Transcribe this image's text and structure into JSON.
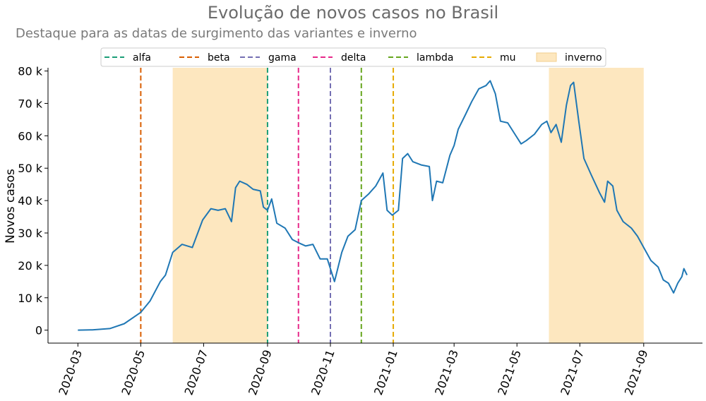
{
  "chart_data": {
    "type": "line",
    "title": "Evolução de novos casos no Brasil",
    "subtitle": "Destaque para as datas de surgimento das variantes e inverno",
    "xlabel": "",
    "ylabel": "Novos casos",
    "xlim": [
      "2020-02-01",
      "2021-10-28"
    ],
    "ylim": [
      -4000,
      81000
    ],
    "grid": false,
    "legend_position": "top-center",
    "x_ticks": [
      "2020-03-01",
      "2020-05-01",
      "2020-07-01",
      "2020-09-01",
      "2020-11-01",
      "2021-01-01",
      "2021-03-01",
      "2021-05-01",
      "2021-07-01",
      "2021-09-01"
    ],
    "x_tick_labels": [
      "2020-03",
      "2020-05",
      "2020-07",
      "2020-09",
      "2020-11",
      "2021-01",
      "2021-03",
      "2021-05",
      "2021-07",
      "2021-09"
    ],
    "y_ticks": [
      0,
      10000,
      20000,
      30000,
      40000,
      50000,
      60000,
      70000,
      80000
    ],
    "y_tick_labels": [
      "0",
      "10 k",
      "20 k",
      "30 k",
      "40 k",
      "50 k",
      "60 k",
      "70 k",
      "80 k"
    ],
    "series": [
      {
        "color": "#1f77b4",
        "points": [
          [
            "2020-03-01",
            0
          ],
          [
            "2020-03-15",
            100
          ],
          [
            "2020-04-01",
            500
          ],
          [
            "2020-04-15",
            2000
          ],
          [
            "2020-05-01",
            5500
          ],
          [
            "2020-05-10",
            9000
          ],
          [
            "2020-05-20",
            15000
          ],
          [
            "2020-05-25",
            17000
          ],
          [
            "2020-06-01",
            24000
          ],
          [
            "2020-06-10",
            26500
          ],
          [
            "2020-06-20",
            25500
          ],
          [
            "2020-06-30",
            34000
          ],
          [
            "2020-07-08",
            37500
          ],
          [
            "2020-07-15",
            37000
          ],
          [
            "2020-07-22",
            37500
          ],
          [
            "2020-07-28",
            33500
          ],
          [
            "2020-08-01",
            44000
          ],
          [
            "2020-08-05",
            46000
          ],
          [
            "2020-08-12",
            45000
          ],
          [
            "2020-08-18",
            43500
          ],
          [
            "2020-08-25",
            43000
          ],
          [
            "2020-08-28",
            38000
          ],
          [
            "2020-09-01",
            37000
          ],
          [
            "2020-09-05",
            40500
          ],
          [
            "2020-09-10",
            33000
          ],
          [
            "2020-09-18",
            31500
          ],
          [
            "2020-09-25",
            28000
          ],
          [
            "2020-10-01",
            27000
          ],
          [
            "2020-10-08",
            26000
          ],
          [
            "2020-10-15",
            26500
          ],
          [
            "2020-10-22",
            22000
          ],
          [
            "2020-10-29",
            22000
          ],
          [
            "2020-11-05",
            15000
          ],
          [
            "2020-11-12",
            24000
          ],
          [
            "2020-11-18",
            29000
          ],
          [
            "2020-11-25",
            31000
          ],
          [
            "2020-12-01",
            40000
          ],
          [
            "2020-12-08",
            42000
          ],
          [
            "2020-12-15",
            44500
          ],
          [
            "2020-12-22",
            48500
          ],
          [
            "2020-12-26",
            37000
          ],
          [
            "2020-12-31",
            35500
          ],
          [
            "2021-01-06",
            37000
          ],
          [
            "2021-01-10",
            53000
          ],
          [
            "2021-01-15",
            54500
          ],
          [
            "2021-01-20",
            52000
          ],
          [
            "2021-01-28",
            51000
          ],
          [
            "2021-02-05",
            50500
          ],
          [
            "2021-02-08",
            40000
          ],
          [
            "2021-02-12",
            46000
          ],
          [
            "2021-02-18",
            45500
          ],
          [
            "2021-02-25",
            54000
          ],
          [
            "2021-03-01",
            57000
          ],
          [
            "2021-03-05",
            62000
          ],
          [
            "2021-03-12",
            66500
          ],
          [
            "2021-03-18",
            70500
          ],
          [
            "2021-03-25",
            74500
          ],
          [
            "2021-04-01",
            75500
          ],
          [
            "2021-04-05",
            77000
          ],
          [
            "2021-04-10",
            73000
          ],
          [
            "2021-04-15",
            64500
          ],
          [
            "2021-04-22",
            64000
          ],
          [
            "2021-04-30",
            60000
          ],
          [
            "2021-05-05",
            57500
          ],
          [
            "2021-05-10",
            58500
          ],
          [
            "2021-05-18",
            60500
          ],
          [
            "2021-05-25",
            63500
          ],
          [
            "2021-05-30",
            64500
          ],
          [
            "2021-06-03",
            61000
          ],
          [
            "2021-06-08",
            63500
          ],
          [
            "2021-06-13",
            58000
          ],
          [
            "2021-06-18",
            69500
          ],
          [
            "2021-06-22",
            75500
          ],
          [
            "2021-06-25",
            76500
          ],
          [
            "2021-06-30",
            64500
          ],
          [
            "2021-07-05",
            53000
          ],
          [
            "2021-07-12",
            48000
          ],
          [
            "2021-07-20",
            42500
          ],
          [
            "2021-07-25",
            39500
          ],
          [
            "2021-07-28",
            46000
          ],
          [
            "2021-08-02",
            44500
          ],
          [
            "2021-08-06",
            37000
          ],
          [
            "2021-08-12",
            33500
          ],
          [
            "2021-08-20",
            31500
          ],
          [
            "2021-08-26",
            29000
          ],
          [
            "2021-09-01",
            25500
          ],
          [
            "2021-09-08",
            21500
          ],
          [
            "2021-09-15",
            19500
          ],
          [
            "2021-09-20",
            15500
          ],
          [
            "2021-09-25",
            14500
          ],
          [
            "2021-09-30",
            11500
          ],
          [
            "2021-10-04",
            14500
          ],
          [
            "2021-10-08",
            16500
          ],
          [
            "2021-10-10",
            19000
          ],
          [
            "2021-10-13",
            17000
          ]
        ]
      }
    ],
    "variants": [
      {
        "name": "alfa",
        "date": "2020-09-01",
        "color": "#1b9e77"
      },
      {
        "name": "beta",
        "date": "2020-05-01",
        "color": "#d95f02"
      },
      {
        "name": "gama",
        "date": "2020-11-01",
        "color": "#7570b3"
      },
      {
        "name": "delta",
        "date": "2020-10-01",
        "color": "#e7298a"
      },
      {
        "name": "lambda",
        "date": "2020-12-01",
        "color": "#66a61e"
      },
      {
        "name": "mu",
        "date": "2021-01-01",
        "color": "#e6ab02"
      }
    ],
    "winter": {
      "name": "inverno",
      "color": "#fde7bf",
      "periods": [
        [
          "2020-06-01",
          "2020-09-01"
        ],
        [
          "2021-06-01",
          "2021-09-01"
        ]
      ]
    },
    "legend_order": [
      "alfa",
      "beta",
      "gama",
      "delta",
      "lambda",
      "mu",
      "inverno"
    ]
  }
}
